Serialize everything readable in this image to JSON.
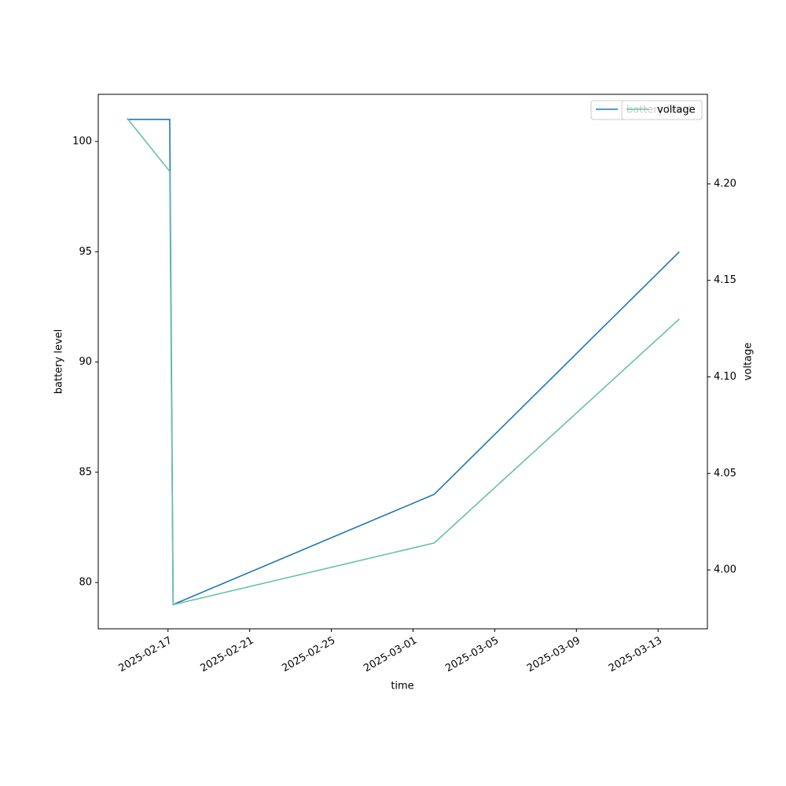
{
  "chart_data": {
    "type": "line",
    "x_label": "time",
    "y_label": "battery level",
    "y2_label": "voltage",
    "x": [
      "2025-02-15T00:00",
      "2025-02-17T02:00",
      "2025-02-17T06:00",
      "2025-03-02T01:00",
      "2025-03-14T01:00"
    ],
    "series": [
      {
        "name": "battery level",
        "color": "#1f77b4",
        "values": [
          101,
          101,
          79,
          84,
          95
        ]
      },
      {
        "name": "voltage",
        "color": "#66c2a5",
        "axis": "y2",
        "values": [
          4.234,
          4.2065,
          3.982,
          4.014,
          4.13
        ]
      }
    ],
    "xlim": [
      "2025-02-13T14:00",
      "2025-03-15T10:00"
    ],
    "xticks": [
      "2025-02-17",
      "2025-02-21",
      "2025-02-25",
      "2025-03-01",
      "2025-03-05",
      "2025-03-09",
      "2025-03-13"
    ],
    "ylim": [
      77.9,
      102.14
    ],
    "yticks": [
      80,
      85,
      90,
      95,
      100
    ],
    "y2lim": [
      3.9695,
      4.2464
    ],
    "y2ticks": [
      {
        "value": 4,
        "label": "4.00"
      },
      4.05,
      {
        "value": 4.1,
        "label": "4.10"
      },
      4.15,
      {
        "value": 4.2,
        "label": "4.20"
      }
    ],
    "legend": "upper right",
    "grid": false
  }
}
